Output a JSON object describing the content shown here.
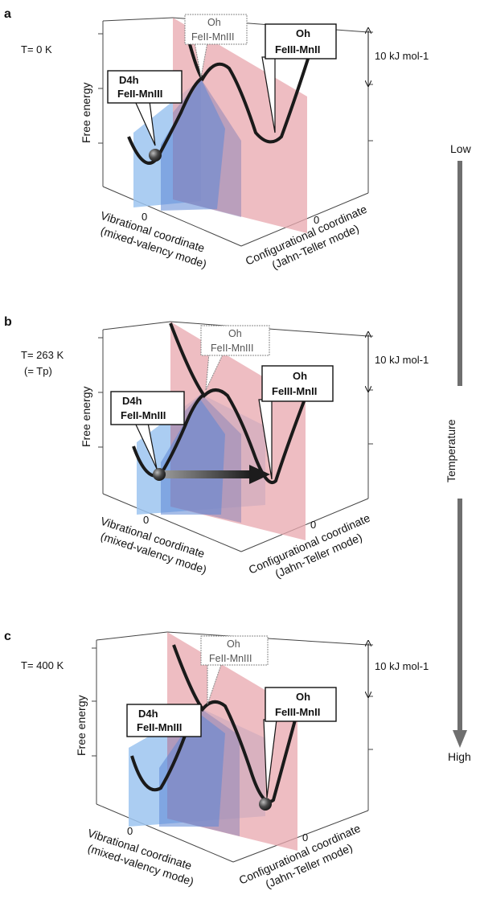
{
  "panels": [
    {
      "letter": "a",
      "temp_label": "T= 0 K",
      "temp_sub": "",
      "states": {
        "d4h": {
          "line1": "D4h",
          "line2": "FeII-MnIII"
        },
        "oh_trans": {
          "line1": "Oh",
          "line2": "FeII-MnIII"
        },
        "oh_final": {
          "line1": "Oh",
          "line2": "FeIII-MnII"
        }
      },
      "ball_at": "D4h",
      "arrow": false
    },
    {
      "letter": "b",
      "temp_label": "T= 263 K",
      "temp_sub": "(= Tp)",
      "states": {
        "d4h": {
          "line1": "D4h",
          "line2": "FeII-MnIII"
        },
        "oh_trans": {
          "line1": "Oh",
          "line2": "FeII-MnIII"
        },
        "oh_final": {
          "line1": "Oh",
          "line2": "FeIII-MnII"
        }
      },
      "ball_at": "D4h",
      "arrow": true
    },
    {
      "letter": "c",
      "temp_label": "T= 400 K",
      "temp_sub": "",
      "states": {
        "d4h": {
          "line1": "D4h",
          "line2": "FeII-MnIII"
        },
        "oh_trans": {
          "line1": "Oh",
          "line2": "FeII-MnIII"
        },
        "oh_final": {
          "line1": "Oh",
          "line2": "FeIII-MnII"
        }
      },
      "ball_at": "Oh",
      "arrow": false
    }
  ],
  "axes": {
    "free_energy": "Free energy",
    "vib_line1": "Vibrational coordinate",
    "vib_line2": "(mixed-valency mode)",
    "conf_line1": "Configurational coordinate",
    "conf_line2": "(Jahn-Teller mode)",
    "zero": "0",
    "scale_bar": "10 kJ mol-1"
  },
  "temperature_axis": {
    "low": "Low",
    "high": "High",
    "label": "Temperature"
  },
  "colors": {
    "blue_plane": "#9cc4f0",
    "red_plane": "#e8a7ad",
    "overlap": "#9b8fb6",
    "curve": "#1a1a1a",
    "ball": "#333333",
    "arrow_gray": "#6f6f6f"
  }
}
